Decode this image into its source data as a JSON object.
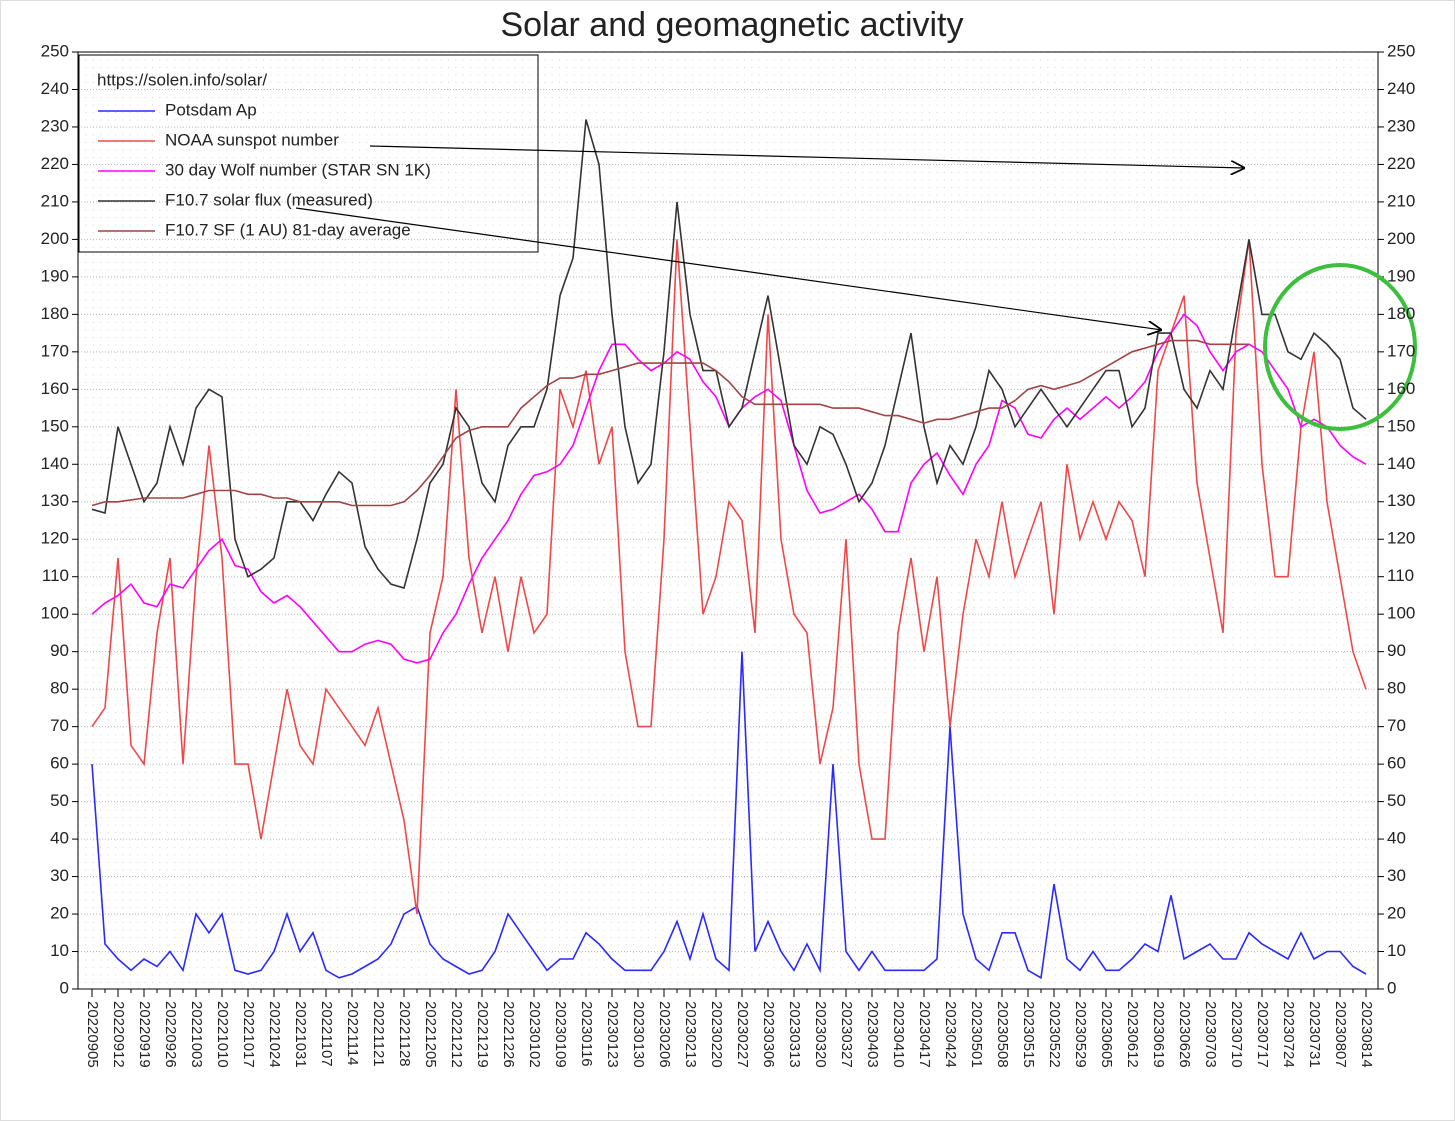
{
  "chart_data": {
    "type": "line",
    "title": "Solar and geomagnetic activity",
    "source": "https://solen.info/solar/",
    "categories": [
      "20220905",
      null,
      "20220912",
      null,
      "20220919",
      null,
      "20220926",
      null,
      "20221003",
      null,
      "20221010",
      null,
      "20221017",
      null,
      "20221024",
      null,
      "20221031",
      null,
      "20221107",
      null,
      "20221114",
      null,
      "20221121",
      null,
      "20221128",
      null,
      "20221205",
      null,
      "20221212",
      null,
      "20221219",
      null,
      "20221226",
      null,
      "20230102",
      null,
      "20230109",
      null,
      "20230116",
      null,
      "20230123",
      null,
      "20230130",
      null,
      "20230206",
      null,
      "20230213",
      null,
      "20230220",
      null,
      "20230227",
      null,
      "20230306",
      null,
      "20230313",
      null,
      "20230320",
      null,
      "20230327",
      null,
      "20230403",
      null,
      "20230410",
      null,
      "20230417",
      null,
      "20230424",
      null,
      "20230501",
      null,
      "20230508",
      null,
      "20230515",
      null,
      "20230522",
      null,
      "20230529",
      null,
      "20230605",
      null,
      "20230612",
      null,
      "20230619",
      null,
      "20230626",
      null,
      "20230703",
      null,
      "20230710",
      null,
      "20230717",
      null,
      "20230724",
      null,
      "20230731",
      null,
      "20230807",
      null,
      "20230814"
    ],
    "series": [
      {
        "name": "Potsdam Ap",
        "color": "#2a2aff",
        "values": [
          60,
          12,
          8,
          5,
          8,
          6,
          10,
          5,
          20,
          15,
          20,
          5,
          4,
          5,
          10,
          20,
          10,
          15,
          5,
          3,
          4,
          6,
          8,
          12,
          20,
          22,
          12,
          8,
          6,
          4,
          5,
          10,
          20,
          15,
          10,
          5,
          8,
          8,
          15,
          12,
          8,
          5,
          5,
          5,
          10,
          18,
          8,
          20,
          8,
          5,
          90,
          10,
          18,
          10,
          5,
          12,
          5,
          60,
          10,
          5,
          10,
          5,
          5,
          5,
          5,
          8,
          70,
          20,
          8,
          5,
          15,
          15,
          5,
          3,
          28,
          8,
          5,
          10,
          5,
          5,
          8,
          12,
          10,
          25,
          8,
          10,
          12,
          8,
          8,
          15,
          12,
          10,
          8,
          15,
          8,
          10,
          10,
          6,
          4
        ]
      },
      {
        "name": "NOAA sunspot number",
        "color": "#f04848",
        "values": [
          70,
          75,
          115,
          65,
          60,
          95,
          115,
          60,
          110,
          145,
          115,
          60,
          60,
          40,
          60,
          80,
          65,
          60,
          80,
          75,
          70,
          65,
          75,
          60,
          45,
          20,
          95,
          110,
          160,
          115,
          95,
          110,
          90,
          110,
          95,
          100,
          160,
          150,
          165,
          140,
          150,
          90,
          70,
          70,
          120,
          200,
          150,
          100,
          110,
          130,
          125,
          95,
          180,
          120,
          100,
          95,
          60,
          75,
          120,
          60,
          40,
          40,
          95,
          115,
          90,
          110,
          70,
          100,
          120,
          110,
          130,
          110,
          120,
          130,
          100,
          140,
          120,
          130,
          120,
          130,
          125,
          110,
          165,
          175,
          185,
          135,
          115,
          95,
          175,
          200,
          140,
          110,
          110,
          150,
          170,
          130,
          110,
          90,
          80
        ]
      },
      {
        "name": "30 day Wolf number (STAR SN 1K)",
        "color": "#ff00ff",
        "values": [
          100,
          103,
          105,
          108,
          103,
          102,
          108,
          107,
          112,
          117,
          120,
          113,
          112,
          106,
          103,
          105,
          102,
          98,
          94,
          90,
          90,
          92,
          93,
          92,
          88,
          87,
          88,
          95,
          100,
          108,
          115,
          120,
          125,
          132,
          137,
          138,
          140,
          145,
          155,
          165,
          172,
          172,
          168,
          165,
          167,
          170,
          168,
          162,
          158,
          150,
          155,
          158,
          160,
          157,
          145,
          133,
          127,
          128,
          130,
          132,
          128,
          122,
          122,
          135,
          140,
          143,
          137,
          132,
          140,
          145,
          157,
          155,
          148,
          147,
          152,
          155,
          152,
          155,
          158,
          155,
          158,
          162,
          170,
          175,
          180,
          177,
          170,
          165,
          170,
          172,
          170,
          165,
          160,
          150,
          152,
          150,
          145,
          142,
          140
        ]
      },
      {
        "name": "F10.7 solar flux (measured)",
        "color": "#333333",
        "values": [
          128,
          127,
          150,
          140,
          130,
          135,
          150,
          140,
          155,
          160,
          158,
          120,
          110,
          112,
          115,
          130,
          130,
          125,
          132,
          138,
          135,
          118,
          112,
          108,
          107,
          120,
          135,
          140,
          155,
          150,
          135,
          130,
          145,
          150,
          150,
          160,
          185,
          195,
          232,
          220,
          180,
          150,
          135,
          140,
          170,
          210,
          180,
          165,
          165,
          150,
          155,
          170,
          185,
          165,
          145,
          140,
          150,
          148,
          140,
          130,
          135,
          145,
          160,
          175,
          150,
          135,
          145,
          140,
          150,
          165,
          160,
          150,
          155,
          160,
          155,
          150,
          155,
          160,
          165,
          165,
          150,
          155,
          175,
          175,
          160,
          155,
          165,
          160,
          180,
          200,
          180,
          180,
          170,
          168,
          175,
          172,
          168,
          155,
          152
        ]
      },
      {
        "name": "F10.7 SF (1 AU) 81-day average",
        "color": "#a04444",
        "values": [
          129,
          130,
          130,
          130.5,
          131,
          131,
          131,
          131,
          132,
          133,
          133,
          133,
          132,
          132,
          131,
          131,
          130,
          130,
          130,
          130,
          129,
          129,
          129,
          129,
          130,
          133,
          137,
          142,
          147,
          149,
          150,
          150,
          150,
          155,
          158,
          161,
          163,
          163,
          164,
          164,
          165,
          166,
          167,
          167,
          167,
          167,
          167,
          167,
          165,
          162,
          158,
          156,
          156,
          156,
          156,
          156,
          156,
          155,
          155,
          155,
          154,
          153,
          153,
          152,
          151,
          152,
          152,
          153,
          154,
          155,
          155,
          157,
          160,
          161,
          160,
          161,
          162,
          164,
          166,
          168,
          170,
          171,
          172,
          173,
          173,
          173,
          172,
          172,
          172,
          172,
          null,
          null,
          null,
          null,
          null,
          null,
          null,
          null,
          null
        ]
      }
    ],
    "ylim": [
      0,
      250
    ],
    "yticks": [
      0,
      10,
      20,
      30,
      40,
      50,
      60,
      70,
      80,
      90,
      100,
      110,
      120,
      130,
      140,
      150,
      160,
      170,
      180,
      190,
      200,
      210,
      220,
      230,
      240,
      250
    ],
    "grid": true
  }
}
